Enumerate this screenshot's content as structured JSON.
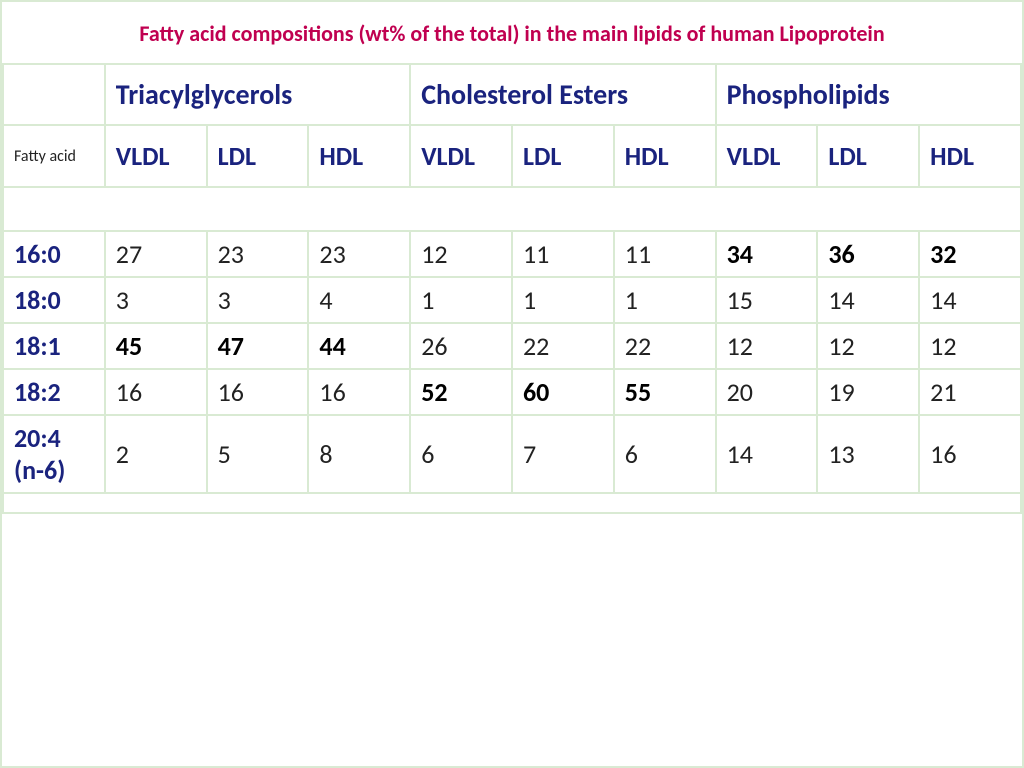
{
  "title": "Fatty acid compositions (wt% of the total) in the main lipids of human Lipoprotein",
  "table": {
    "type": "table",
    "border_color": "#d9ead3",
    "background_color": "#ffffff",
    "header_text_color": "#1a237e",
    "title_color": "#c00050",
    "data_text_color": "#222222",
    "bold_text_color": "#000000",
    "title_fontsize": 22,
    "group_header_fontsize": 28,
    "sub_header_fontsize": 26,
    "data_fontsize": 26,
    "fatty_acid_label": "Fatty acid",
    "groups": [
      {
        "label": "Triacylglycerols"
      },
      {
        "label": "Cholesterol Esters"
      },
      {
        "label": "Phospholipids"
      }
    ],
    "sub_columns": [
      "VLDL",
      "LDL",
      "HDL",
      "VLDL",
      "LDL",
      "HDL",
      "VLDL",
      "LDL",
      "HDL"
    ],
    "rows": [
      {
        "label": "16:0",
        "cells": [
          {
            "v": "27",
            "b": false
          },
          {
            "v": "23",
            "b": false
          },
          {
            "v": "23",
            "b": false
          },
          {
            "v": "12",
            "b": false
          },
          {
            "v": "11",
            "b": false
          },
          {
            "v": "11",
            "b": false
          },
          {
            "v": "34",
            "b": true
          },
          {
            "v": "36",
            "b": true
          },
          {
            "v": "32",
            "b": true
          }
        ]
      },
      {
        "label": "18:0",
        "cells": [
          {
            "v": "3",
            "b": false
          },
          {
            "v": "3",
            "b": false
          },
          {
            "v": "4",
            "b": false
          },
          {
            "v": "1",
            "b": false
          },
          {
            "v": "1",
            "b": false
          },
          {
            "v": "1",
            "b": false
          },
          {
            "v": "15",
            "b": false
          },
          {
            "v": "14",
            "b": false
          },
          {
            "v": "14",
            "b": false
          }
        ]
      },
      {
        "label": "18:1",
        "cells": [
          {
            "v": "45",
            "b": true
          },
          {
            "v": "47",
            "b": true
          },
          {
            "v": "44",
            "b": true
          },
          {
            "v": "26",
            "b": false
          },
          {
            "v": "22",
            "b": false
          },
          {
            "v": "22",
            "b": false
          },
          {
            "v": "12",
            "b": false
          },
          {
            "v": "12",
            "b": false
          },
          {
            "v": "12",
            "b": false
          }
        ]
      },
      {
        "label": "18:2",
        "cells": [
          {
            "v": "16",
            "b": false
          },
          {
            "v": "16",
            "b": false
          },
          {
            "v": "16",
            "b": false
          },
          {
            "v": "52",
            "b": true
          },
          {
            "v": "60",
            "b": true
          },
          {
            "v": "55",
            "b": true
          },
          {
            "v": "20",
            "b": false
          },
          {
            "v": "19",
            "b": false
          },
          {
            "v": "21",
            "b": false
          }
        ]
      },
      {
        "label": "20:4 (n-6)",
        "cells": [
          {
            "v": "2",
            "b": false
          },
          {
            "v": "5",
            "b": false
          },
          {
            "v": "8",
            "b": false
          },
          {
            "v": "6",
            "b": false
          },
          {
            "v": "7",
            "b": false
          },
          {
            "v": "6",
            "b": false
          },
          {
            "v": "14",
            "b": false
          },
          {
            "v": "13",
            "b": false
          },
          {
            "v": "16",
            "b": false
          }
        ]
      }
    ]
  }
}
